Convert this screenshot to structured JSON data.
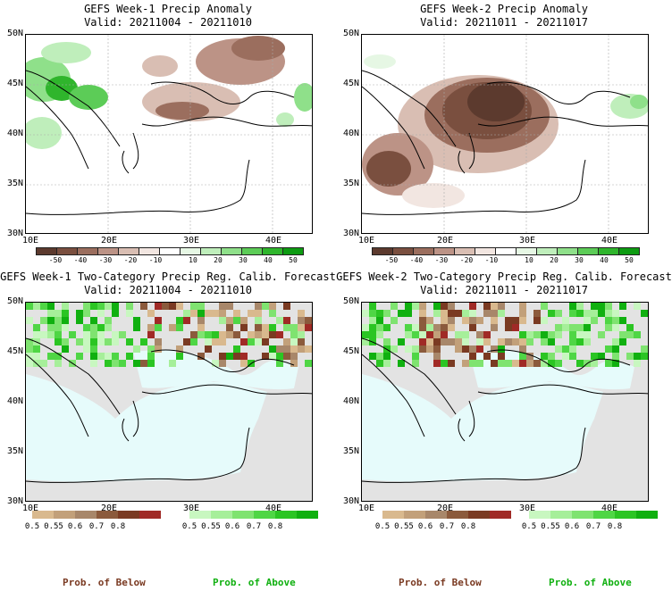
{
  "panels": [
    {
      "title": "GEFS Week-1 Precip Anomaly",
      "valid": "Valid: 20211004 - 20211010"
    },
    {
      "title": "GEFS Week-2 Precip Anomaly",
      "valid": "Valid: 20211011 - 20211017"
    },
    {
      "title": "GEFS Week-1 Two-Category Precip Reg. Calib. Forecast",
      "valid": "Valid: 20211004 - 20211010"
    },
    {
      "title": "GEFS Week-2 Two-Category Precip Reg. Calib. Forecast",
      "valid": "Valid: 20211011 - 20211017"
    }
  ],
  "lat_labels": [
    "50N",
    "45N",
    "40N",
    "35N",
    "30N"
  ],
  "lon_labels": [
    "10E",
    "20E",
    "30E",
    "40E"
  ],
  "anom_colorbar": {
    "labels": [
      "-50",
      "-40",
      "-30",
      "-20",
      "-10",
      "10",
      "20",
      "30",
      "40",
      "50"
    ],
    "colors": [
      "#5c3a2e",
      "#7a4f3f",
      "#9b6e5e",
      "#bc9386",
      "#d9beb3",
      "#f2e6e1",
      "#ffffff",
      "#e6f7e4",
      "#bfeebb",
      "#8fe08a",
      "#5ccc57",
      "#2fb52c",
      "#0d9b12"
    ]
  },
  "prob_colorbar": {
    "below_labels": [
      "0.5",
      "0.55",
      "0.6",
      "0.7",
      "0.8"
    ],
    "above_labels": [
      "0.5",
      "0.55",
      "0.6",
      "0.7",
      "0.8"
    ],
    "below_colors": [
      "#d9b98e",
      "#c2a07a",
      "#a8876a",
      "#8b5a3c",
      "#7a3a22",
      "#a02a26"
    ],
    "above_colors": [
      "#c8f7c0",
      "#a6ef9a",
      "#7fe370",
      "#4fd645",
      "#2bc523",
      "#10b010"
    ]
  },
  "footer": {
    "below": "Prob. of Below",
    "above": "Prob. of Above"
  },
  "colors": {
    "sea_prob": "#e6fbfb",
    "nodata": "#e3e3e3",
    "below_text": "#7a3a22",
    "above_text": "#10b010"
  }
}
